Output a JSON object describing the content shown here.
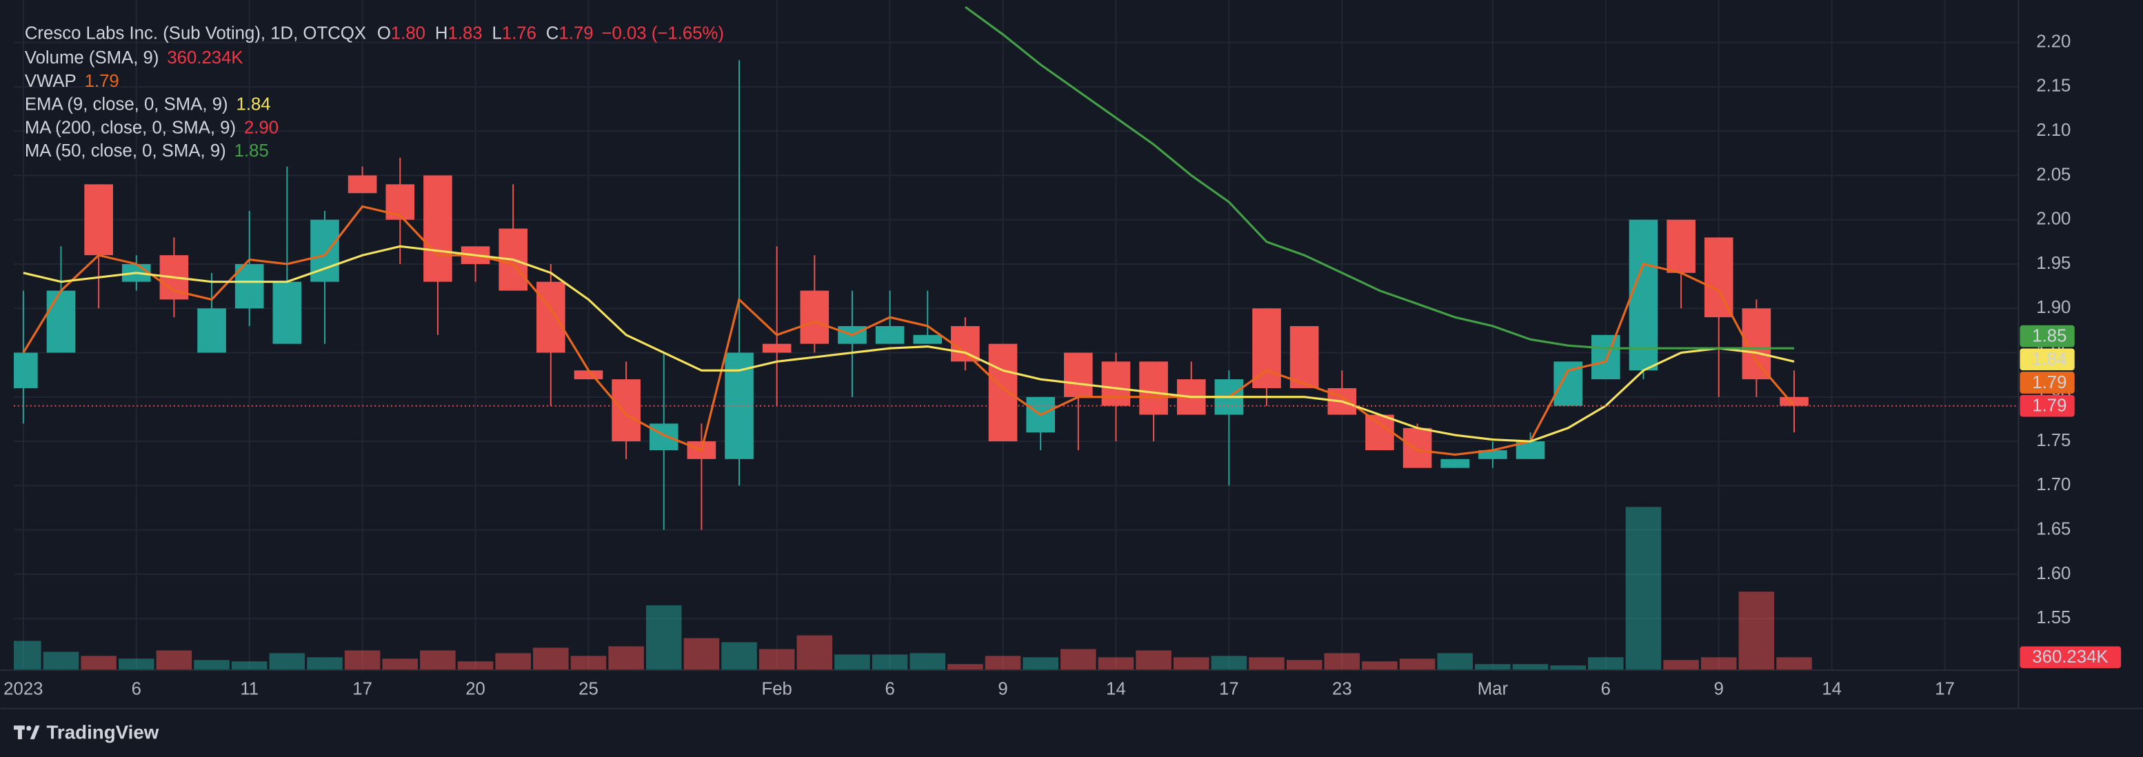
{
  "chart_data": {
    "type": "candlestick",
    "title": "Cresco Labs Inc. (Sub Voting), 1D, OTCQX",
    "ohlc": [
      {
        "label": "O",
        "value": "1.80"
      },
      {
        "label": "H",
        "value": "1.83"
      },
      {
        "label": "L",
        "value": "1.76"
      },
      {
        "label": "C",
        "value": "1.79"
      }
    ],
    "change": "−0.03 (−1.65%)",
    "up_color": "#26a69a",
    "down_color": "#ef5350",
    "categories": [
      "2023",
      null,
      null,
      "6",
      null,
      null,
      "11",
      null,
      null,
      "17",
      null,
      null,
      "20",
      null,
      null,
      "25",
      null,
      null,
      null,
      null,
      "Feb",
      null,
      null,
      "6",
      null,
      null,
      "9",
      null,
      null,
      "14",
      null,
      null,
      "17",
      null,
      null,
      "23",
      null,
      null,
      null,
      "Mar",
      null,
      null,
      "6",
      null,
      null,
      "9",
      null,
      null,
      "14",
      null,
      null,
      "17"
    ],
    "open": [
      1.81,
      1.85,
      2.04,
      1.93,
      1.96,
      1.85,
      1.9,
      1.86,
      1.93,
      2.05,
      2.04,
      2.05,
      1.97,
      1.99,
      1.93,
      1.83,
      1.82,
      1.74,
      1.75,
      1.73,
      1.86,
      1.92,
      1.86,
      1.86,
      1.86,
      1.88,
      1.86,
      1.76,
      1.85,
      1.84,
      1.84,
      1.82,
      1.78,
      1.9,
      1.88,
      1.81,
      1.78,
      1.765,
      1.72,
      1.73,
      1.73,
      1.79,
      1.82,
      1.83,
      2.0,
      1.98,
      1.9,
      1.8,
      null,
      null,
      null,
      null
    ],
    "high": [
      1.92,
      1.97,
      2.04,
      1.96,
      1.98,
      1.94,
      2.01,
      2.06,
      2.01,
      2.06,
      2.07,
      2.05,
      1.97,
      2.04,
      1.95,
      1.83,
      1.84,
      1.85,
      1.77,
      2.18,
      1.97,
      1.96,
      1.92,
      1.92,
      1.92,
      1.89,
      1.86,
      1.8,
      1.85,
      1.85,
      1.84,
      1.84,
      1.83,
      1.9,
      1.88,
      1.83,
      1.78,
      1.77,
      1.73,
      1.75,
      1.76,
      1.84,
      1.87,
      2.0,
      2.0,
      1.98,
      1.91,
      1.83,
      null,
      null,
      null,
      null
    ],
    "low": [
      1.77,
      1.85,
      1.9,
      1.92,
      1.89,
      1.85,
      1.88,
      1.86,
      1.86,
      2.03,
      1.95,
      1.87,
      1.93,
      1.92,
      1.79,
      1.82,
      1.73,
      1.65,
      1.65,
      1.7,
      1.79,
      1.85,
      1.8,
      1.86,
      1.86,
      1.83,
      1.75,
      1.74,
      1.74,
      1.75,
      1.75,
      1.78,
      1.7,
      1.79,
      1.81,
      1.78,
      1.74,
      1.72,
      1.72,
      1.72,
      1.73,
      1.79,
      1.82,
      1.82,
      1.9,
      1.8,
      1.8,
      1.76,
      null,
      null,
      null,
      null
    ],
    "close": [
      1.85,
      1.92,
      1.96,
      1.95,
      1.91,
      1.9,
      1.95,
      1.93,
      2.0,
      2.03,
      2.0,
      1.93,
      1.95,
      1.92,
      1.85,
      1.82,
      1.75,
      1.77,
      1.73,
      1.85,
      1.85,
      1.86,
      1.88,
      1.88,
      1.87,
      1.84,
      1.75,
      1.8,
      1.8,
      1.79,
      1.78,
      1.78,
      1.82,
      1.81,
      1.81,
      1.78,
      1.74,
      1.72,
      1.73,
      1.74,
      1.75,
      1.84,
      1.87,
      2.0,
      1.94,
      1.89,
      1.82,
      1.79,
      null,
      null,
      null,
      null
    ],
    "indicators": [
      {
        "name": "Volume (SMA, 9)",
        "label": "360.234K",
        "color": "#f23645",
        "values": [
          840000,
          520000,
          400000,
          320000,
          560000,
          280000,
          240000,
          480000,
          360000,
          560000,
          320000,
          560000,
          240000,
          480000,
          640000,
          400000,
          680000,
          1880000,
          920000,
          800000,
          600000,
          1000000,
          440000,
          440000,
          480000,
          160000,
          400000,
          360000,
          600000,
          360000,
          560000,
          360000,
          400000,
          360000,
          280000,
          480000,
          240000,
          320000,
          480000,
          160000,
          160000,
          120000,
          360000,
          4760000,
          280000,
          360000,
          2280000,
          360234,
          null,
          null,
          null,
          null
        ]
      },
      {
        "name": "VWAP",
        "label": "1.79",
        "color": "#e8671c",
        "values": [
          1.85,
          1.92,
          1.96,
          1.95,
          1.92,
          1.91,
          1.955,
          1.95,
          1.96,
          2.015,
          2.005,
          1.96,
          1.96,
          1.95,
          1.9,
          1.83,
          1.78,
          1.757,
          1.74,
          1.91,
          1.87,
          1.885,
          1.87,
          1.89,
          1.88,
          1.85,
          1.81,
          1.78,
          1.8,
          1.8,
          1.8,
          1.8,
          1.8,
          1.83,
          1.815,
          1.8,
          1.77,
          1.74,
          1.735,
          1.74,
          1.75,
          1.83,
          1.84,
          1.95,
          1.94,
          1.92,
          1.84,
          1.79,
          null,
          null,
          null,
          null
        ]
      },
      {
        "name": "EMA (9, close, 0, SMA, 9)",
        "label": "1.84",
        "color": "#f5e35b",
        "values": [
          1.94,
          1.93,
          1.935,
          1.94,
          1.935,
          1.93,
          1.93,
          1.93,
          1.945,
          1.96,
          1.97,
          1.965,
          1.96,
          1.955,
          1.94,
          1.91,
          1.87,
          1.85,
          1.83,
          1.83,
          1.84,
          1.845,
          1.85,
          1.855,
          1.857,
          1.85,
          1.83,
          1.82,
          1.815,
          1.81,
          1.805,
          1.8,
          1.8,
          1.8,
          1.8,
          1.795,
          1.78,
          1.765,
          1.757,
          1.752,
          1.75,
          1.765,
          1.79,
          1.83,
          1.85,
          1.855,
          1.85,
          1.84,
          null,
          null,
          null,
          null
        ]
      },
      {
        "name": "MA (200, close, 0, SMA, 9)",
        "label": "2.90",
        "color": "#f23645"
      },
      {
        "name": "MA (50, close, 0, SMA, 9)",
        "label": "1.85",
        "color": "#43a047",
        "values": [
          null,
          null,
          null,
          null,
          null,
          null,
          null,
          null,
          null,
          null,
          null,
          null,
          null,
          null,
          null,
          null,
          null,
          null,
          null,
          null,
          null,
          null,
          null,
          null,
          null,
          2.24,
          2.209,
          2.175,
          2.145,
          2.115,
          2.085,
          2.05,
          2.02,
          1.975,
          1.96,
          1.94,
          1.92,
          1.905,
          1.89,
          1.88,
          1.865,
          1.858,
          1.855,
          1.855,
          1.855,
          1.855,
          1.855,
          1.855,
          null,
          null,
          null,
          null
        ]
      }
    ],
    "ylim": [
      1.4925,
      2.2325
    ],
    "volume_ylim": [
      0,
      19200000
    ],
    "yticks": [
      {
        "value": 1.55,
        "label": "1.55"
      },
      {
        "value": 1.6,
        "label": "1.60"
      },
      {
        "value": 1.65,
        "label": "1.65"
      },
      {
        "value": 1.7,
        "label": "1.70"
      },
      {
        "value": 1.75,
        "label": "1.75"
      },
      {
        "value": 1.8,
        "label": "1.80"
      },
      {
        "value": 1.85,
        "label": "1.85"
      },
      {
        "value": 1.9,
        "label": "1.90"
      },
      {
        "value": 1.95,
        "label": "1.95"
      },
      {
        "value": 2.0,
        "label": "2.00"
      },
      {
        "value": 2.05,
        "label": "2.05"
      },
      {
        "value": 2.1,
        "label": "2.10"
      },
      {
        "value": 2.15,
        "label": "2.15"
      },
      {
        "value": 2.2,
        "label": "2.20"
      }
    ],
    "grid": true,
    "log_scale": false
  },
  "footer": {
    "brand": "TradingView"
  }
}
